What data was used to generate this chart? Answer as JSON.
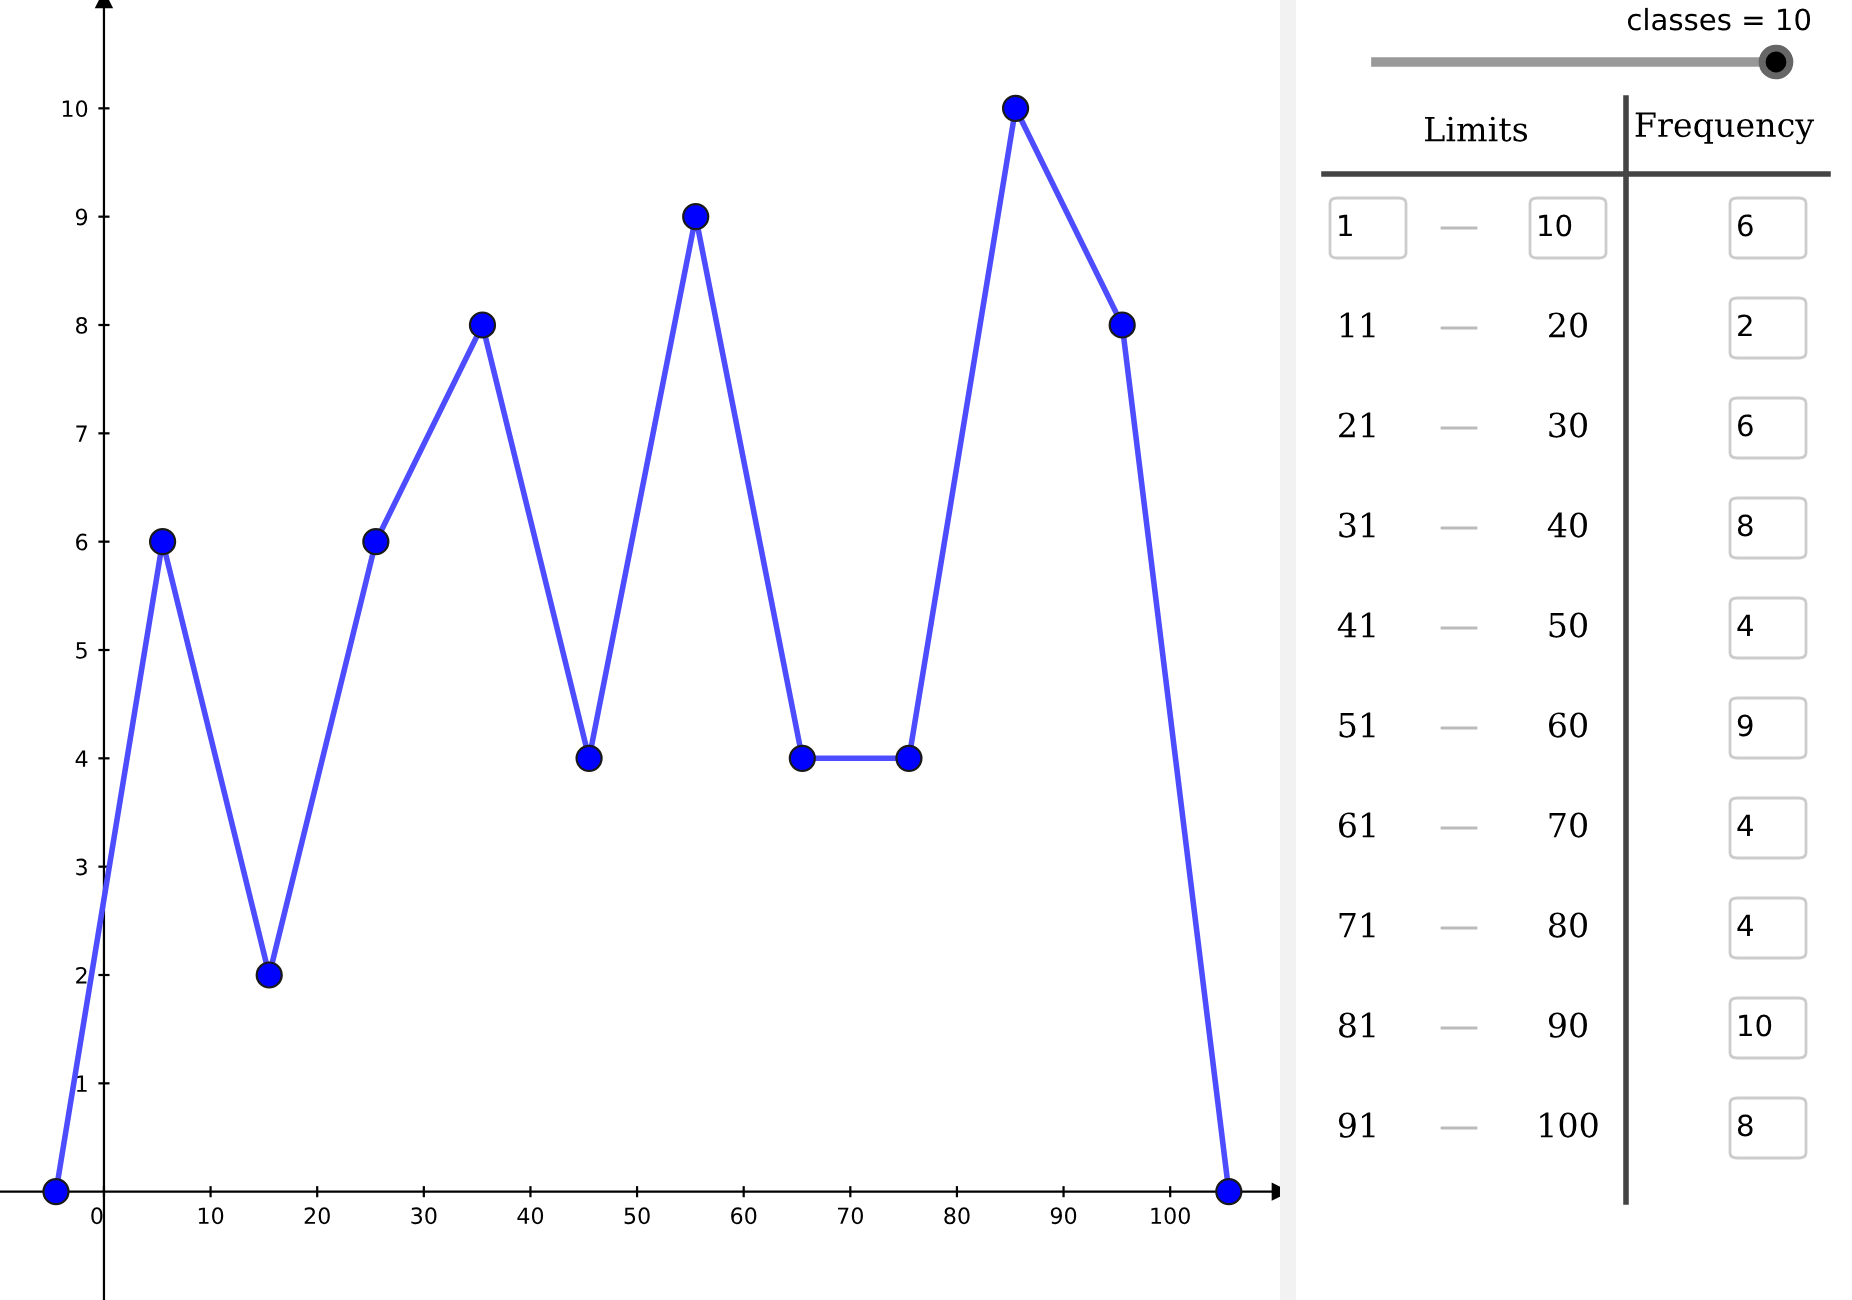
{
  "chart_data": {
    "type": "line",
    "x": [
      -4.5,
      5.5,
      15.5,
      25.5,
      35.5,
      45.5,
      55.5,
      65.5,
      75.5,
      85.5,
      95.5,
      105.5
    ],
    "series": [
      {
        "color": "#4d4dff",
        "values": [
          0,
          6,
          2,
          6,
          8,
          4,
          9,
          4,
          4,
          10,
          8,
          0
        ]
      }
    ],
    "value_labels": [
      null,
      "6",
      "2",
      "6",
      "8",
      "4",
      "9",
      "4",
      "4",
      "10",
      "8",
      null
    ],
    "marker": "circle",
    "line_style": "solid",
    "grid": false,
    "xlim": [
      -9.75,
      110.3
    ],
    "ylim": [
      -1,
      11
    ],
    "xticks": [
      0,
      10,
      20,
      30,
      40,
      50,
      60,
      70,
      80,
      90,
      100
    ],
    "yticks": [
      1,
      2,
      3,
      4,
      5,
      6,
      7,
      8,
      9,
      10
    ],
    "annotations": [
      "classes = 10",
      "Limits",
      "Frequency",
      "1",
      "10",
      "11",
      "20",
      "21",
      "30",
      "31",
      "40",
      "41",
      "50",
      "51",
      "60",
      "61",
      "70",
      "71",
      "80",
      "81",
      "90",
      "91",
      "100"
    ]
  }
}
